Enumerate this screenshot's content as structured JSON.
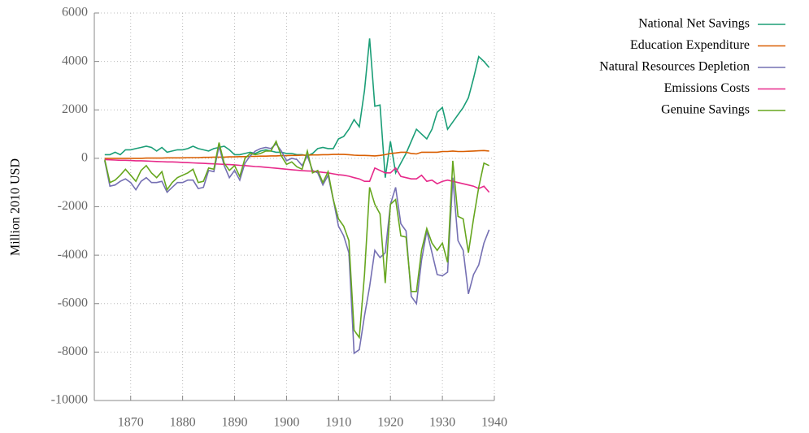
{
  "chart_data": {
    "type": "line",
    "y_label": "Million 2010 USD",
    "x": [
      1865,
      1866,
      1867,
      1868,
      1869,
      1870,
      1871,
      1872,
      1873,
      1874,
      1875,
      1876,
      1877,
      1878,
      1879,
      1880,
      1881,
      1882,
      1883,
      1884,
      1885,
      1886,
      1887,
      1888,
      1889,
      1890,
      1891,
      1892,
      1893,
      1894,
      1895,
      1896,
      1897,
      1898,
      1899,
      1900,
      1901,
      1902,
      1903,
      1904,
      1905,
      1906,
      1907,
      1908,
      1909,
      1910,
      1911,
      1912,
      1913,
      1914,
      1915,
      1916,
      1917,
      1918,
      1919,
      1920,
      1921,
      1922,
      1923,
      1924,
      1925,
      1926,
      1927,
      1928,
      1929,
      1930,
      1931,
      1932,
      1933,
      1934,
      1935,
      1936,
      1937,
      1938,
      1939
    ],
    "series": [
      {
        "name": "National Net Savings",
        "color": "#1b9e77",
        "values": [
          150,
          150,
          250,
          150,
          350,
          350,
          400,
          450,
          500,
          450,
          300,
          450,
          250,
          300,
          350,
          350,
          400,
          500,
          400,
          350,
          300,
          400,
          450,
          500,
          350,
          150,
          150,
          200,
          250,
          200,
          300,
          350,
          300,
          250,
          250,
          200,
          200,
          150,
          150,
          100,
          200,
          400,
          450,
          400,
          400,
          800,
          900,
          1200,
          1600,
          1300,
          2800,
          4950,
          2150,
          2200,
          -800,
          700,
          -600,
          -200,
          200,
          700,
          1200,
          1000,
          800,
          1200,
          1900,
          2100,
          1200,
          1500,
          1800,
          2100,
          2500,
          3300,
          4200,
          4000,
          3750
        ]
      },
      {
        "name": "Education Expenditure",
        "color": "#d95f02",
        "values": [
          0,
          0,
          0,
          0,
          0,
          0,
          0,
          0,
          10,
          10,
          10,
          10,
          20,
          20,
          20,
          20,
          30,
          30,
          30,
          40,
          40,
          50,
          50,
          50,
          60,
          60,
          70,
          70,
          80,
          80,
          90,
          90,
          100,
          100,
          110,
          110,
          120,
          120,
          130,
          130,
          140,
          140,
          150,
          150,
          160,
          160,
          160,
          150,
          130,
          120,
          120,
          110,
          100,
          120,
          150,
          200,
          220,
          250,
          250,
          200,
          180,
          250,
          250,
          250,
          250,
          280,
          280,
          300,
          280,
          280,
          290,
          300,
          310,
          320,
          300
        ]
      },
      {
        "name": "Natural Resources Depletion",
        "color": "#7570b3",
        "values": [
          -100,
          -1150,
          -1100,
          -950,
          -850,
          -1000,
          -1300,
          -950,
          -800,
          -1000,
          -1000,
          -950,
          -1400,
          -1200,
          -1000,
          -1000,
          -900,
          -900,
          -1250,
          -1200,
          -500,
          -550,
          500,
          -300,
          -800,
          -500,
          -900,
          -200,
          100,
          300,
          400,
          450,
          400,
          600,
          300,
          -100,
          0,
          -50,
          -300,
          100,
          -500,
          -600,
          -1100,
          -700,
          -1700,
          -2800,
          -3200,
          -3900,
          -8050,
          -7900,
          -6500,
          -5300,
          -3800,
          -4100,
          -3900,
          -1900,
          -1200,
          -2700,
          -3000,
          -5700,
          -6000,
          -4200,
          -3000,
          -3900,
          -4800,
          -4850,
          -4700,
          -800,
          -3400,
          -3800,
          -5600,
          -4800,
          -4400,
          -3500,
          -2950
        ]
      },
      {
        "name": "Emissions Costs",
        "color": "#e7298a",
        "values": [
          -50,
          -60,
          -70,
          -80,
          -80,
          -90,
          -100,
          -100,
          -110,
          -120,
          -130,
          -140,
          -150,
          -150,
          -160,
          -170,
          -180,
          -190,
          -200,
          -210,
          -220,
          -230,
          -240,
          -250,
          -260,
          -270,
          -290,
          -300,
          -320,
          -340,
          -350,
          -370,
          -390,
          -410,
          -430,
          -450,
          -470,
          -490,
          -510,
          -520,
          -530,
          -550,
          -580,
          -600,
          -640,
          -680,
          -700,
          -740,
          -800,
          -850,
          -950,
          -950,
          -400,
          -500,
          -600,
          -600,
          -400,
          -750,
          -800,
          -850,
          -850,
          -700,
          -950,
          -900,
          -1050,
          -950,
          -900,
          -950,
          -1000,
          -1050,
          -1100,
          -1150,
          -1250,
          -1150,
          -1400
        ]
      },
      {
        "name": "Genuine Savings",
        "color": "#66a61e",
        "values": [
          -50,
          -1000,
          -900,
          -700,
          -450,
          -700,
          -950,
          -500,
          -300,
          -600,
          -800,
          -550,
          -1300,
          -1000,
          -800,
          -700,
          -600,
          -450,
          -1000,
          -950,
          -400,
          -450,
          650,
          -200,
          -500,
          -300,
          -750,
          0,
          200,
          150,
          200,
          300,
          300,
          700,
          100,
          -250,
          -150,
          -350,
          -450,
          300,
          -600,
          -500,
          -1000,
          -550,
          -1700,
          -2500,
          -2800,
          -3400,
          -7100,
          -7400,
          -4800,
          -1200,
          -1900,
          -2300,
          -5150,
          -1900,
          -1700,
          -3200,
          -3250,
          -5500,
          -5500,
          -3800,
          -2900,
          -3500,
          -3800,
          -3500,
          -4300,
          -100,
          -2400,
          -2500,
          -3900,
          -2500,
          -1200,
          -200,
          -300
        ]
      }
    ],
    "xlim": [
      1863,
      1940
    ],
    "xticks": [
      1870,
      1880,
      1890,
      1900,
      1910,
      1920,
      1930,
      1940
    ],
    "ylim": [
      -10000,
      6000
    ],
    "yticks": [
      -10000,
      -8000,
      -6000,
      -4000,
      -2000,
      0,
      2000,
      4000,
      6000
    ],
    "grid": true,
    "legend": "top-right"
  }
}
